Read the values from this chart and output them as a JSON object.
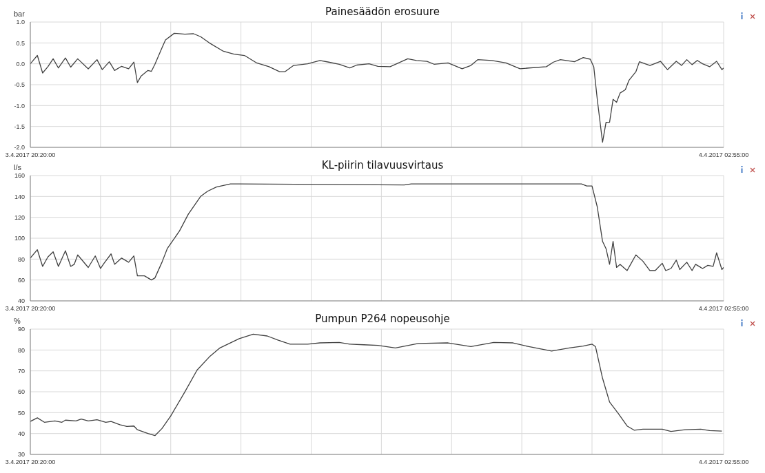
{
  "chart_data": [
    {
      "type": "line",
      "title": "Painesäädön erosuure",
      "ylabel": "bar",
      "grid": true,
      "xlim": [
        "2017-04-03T20:20",
        "2017-04-04T02:55"
      ],
      "xticks": [
        {
          "value": "2017-04-03T20:20",
          "label": "3.4.2017 20:20:00"
        },
        {
          "value": "2017-04-03T21:00",
          "label": null
        },
        {
          "value": "2017-04-03T21:40",
          "label": null
        },
        {
          "value": "2017-04-03T22:20",
          "label": null
        },
        {
          "value": "2017-04-03T23:00",
          "label": null
        },
        {
          "value": "2017-04-03T23:40",
          "label": null
        },
        {
          "value": "2017-04-04T00:20",
          "label": null
        },
        {
          "value": "2017-04-04T01:00",
          "label": null
        },
        {
          "value": "2017-04-04T01:40",
          "label": null
        },
        {
          "value": "2017-04-04T02:20",
          "label": null
        },
        {
          "value": "2017-04-04T02:55",
          "label": "4.4.2017 02:55:00"
        }
      ],
      "ylim": [
        -2,
        1
      ],
      "yticks": [
        {
          "value": -2,
          "label": "-2.0"
        },
        {
          "value": -1.5,
          "label": "-1.5"
        },
        {
          "value": -1,
          "label": "-1.0"
        },
        {
          "value": -0.5,
          "label": "-0.5"
        },
        {
          "value": 0,
          "label": "0.0"
        },
        {
          "value": 0.5,
          "label": "0.5"
        },
        {
          "value": 1,
          "label": "1.0"
        }
      ],
      "x": [
        "2017-04-03T20:20",
        "2017-04-03T20:24",
        "2017-04-03T20:27",
        "2017-04-03T20:30",
        "2017-04-03T20:33",
        "2017-04-03T20:36",
        "2017-04-03T20:40",
        "2017-04-03T20:43",
        "2017-04-03T20:47",
        "2017-04-03T20:53",
        "2017-04-03T20:58",
        "2017-04-03T21:01",
        "2017-04-03T21:05",
        "2017-04-03T21:08",
        "2017-04-03T21:12",
        "2017-04-03T21:16",
        "2017-04-03T21:19",
        "2017-04-03T21:21",
        "2017-04-03T21:23",
        "2017-04-03T21:27",
        "2017-04-03T21:29",
        "2017-04-03T21:31",
        "2017-04-03T21:35",
        "2017-04-03T21:37",
        "2017-04-03T21:42",
        "2017-04-03T21:48",
        "2017-04-03T21:53",
        "2017-04-03T21:57",
        "2017-04-03T22:02",
        "2017-04-03T22:10",
        "2017-04-03T22:16",
        "2017-04-03T22:22",
        "2017-04-03T22:29",
        "2017-04-03T22:36",
        "2017-04-03T22:42",
        "2017-04-03T22:45",
        "2017-04-03T22:50",
        "2017-04-03T22:58",
        "2017-04-03T23:05",
        "2017-04-03T23:10",
        "2017-04-03T23:16",
        "2017-04-03T23:22",
        "2017-04-03T23:26",
        "2017-04-03T23:33",
        "2017-04-03T23:38",
        "2017-04-03T23:45",
        "2017-04-03T23:55",
        "2017-04-04T00:00",
        "2017-04-04T00:06",
        "2017-04-04T00:10",
        "2017-04-04T00:18",
        "2017-04-04T00:26",
        "2017-04-04T00:31",
        "2017-04-04T00:35",
        "2017-04-04T00:43",
        "2017-04-04T00:51",
        "2017-04-04T00:59",
        "2017-04-04T01:04",
        "2017-04-04T01:14",
        "2017-04-04T01:18",
        "2017-04-04T01:22",
        "2017-04-04T01:30",
        "2017-04-04T01:35",
        "2017-04-04T01:39",
        "2017-04-04T01:41",
        "2017-04-04T01:43",
        "2017-04-04T01:46",
        "2017-04-04T01:48",
        "2017-04-04T01:50",
        "2017-04-04T01:52",
        "2017-04-04T01:54",
        "2017-04-04T01:56",
        "2017-04-04T01:59",
        "2017-04-04T02:01",
        "2017-04-04T02:05",
        "2017-04-04T02:07",
        "2017-04-04T02:13",
        "2017-04-04T02:19",
        "2017-04-04T02:23",
        "2017-04-04T02:28",
        "2017-04-04T02:31",
        "2017-04-04T02:34",
        "2017-04-04T02:37",
        "2017-04-04T02:40",
        "2017-04-04T02:43",
        "2017-04-04T02:47",
        "2017-04-04T02:51",
        "2017-04-04T02:54",
        "2017-04-04T02:55"
      ],
      "series": [
        {
          "color": "#404040",
          "values": [
            0.0,
            0.2,
            -0.22,
            -0.07,
            0.12,
            -0.1,
            0.14,
            -0.08,
            0.12,
            -0.12,
            0.1,
            -0.14,
            0.05,
            -0.16,
            -0.06,
            -0.12,
            0.04,
            -0.45,
            -0.3,
            -0.16,
            -0.18,
            -0.01,
            0.38,
            0.57,
            0.73,
            0.71,
            0.72,
            0.65,
            0.5,
            0.3,
            0.23,
            0.2,
            0.02,
            -0.07,
            -0.19,
            -0.19,
            -0.04,
            0.0,
            0.08,
            0.04,
            -0.01,
            -0.1,
            -0.03,
            0.0,
            -0.06,
            -0.07,
            0.12,
            0.08,
            0.06,
            -0.01,
            0.02,
            -0.12,
            -0.04,
            0.1,
            0.08,
            0.02,
            -0.12,
            -0.1,
            -0.07,
            0.04,
            0.1,
            0.05,
            0.15,
            0.11,
            -0.07,
            -0.85,
            -1.88,
            -1.4,
            -1.4,
            -0.85,
            -0.92,
            -0.7,
            -0.62,
            -0.4,
            -0.19,
            0.05,
            -0.04,
            0.06,
            -0.14,
            0.06,
            -0.04,
            0.1,
            -0.02,
            0.08,
            0.0,
            -0.07,
            0.06,
            -0.14,
            -0.1
          ]
        }
      ]
    },
    {
      "type": "line",
      "title": "KL-piirin tilavuusvirtaus",
      "ylabel": "l/s",
      "grid": true,
      "xlim": [
        "2017-04-03T20:20",
        "2017-04-04T02:55"
      ],
      "xticks": [
        {
          "value": "2017-04-03T20:20",
          "label": "3.4.2017 20:20:00"
        },
        {
          "value": "2017-04-03T21:00",
          "label": null
        },
        {
          "value": "2017-04-03T21:40",
          "label": null
        },
        {
          "value": "2017-04-03T22:20",
          "label": null
        },
        {
          "value": "2017-04-03T23:00",
          "label": null
        },
        {
          "value": "2017-04-03T23:40",
          "label": null
        },
        {
          "value": "2017-04-04T00:20",
          "label": null
        },
        {
          "value": "2017-04-04T01:00",
          "label": null
        },
        {
          "value": "2017-04-04T01:40",
          "label": null
        },
        {
          "value": "2017-04-04T02:20",
          "label": null
        },
        {
          "value": "2017-04-04T02:55",
          "label": "4.4.2017 02:55:00"
        }
      ],
      "ylim": [
        40,
        160
      ],
      "yticks": [
        40,
        60,
        80,
        100,
        120,
        140,
        160
      ],
      "x": [
        "2017-04-03T20:20",
        "2017-04-03T20:24",
        "2017-04-03T20:27",
        "2017-04-03T20:30",
        "2017-04-03T20:33",
        "2017-04-03T20:36",
        "2017-04-03T20:40",
        "2017-04-03T20:43",
        "2017-04-03T20:45",
        "2017-04-03T20:47",
        "2017-04-03T20:53",
        "2017-04-03T20:57",
        "2017-04-03T21:00",
        "2017-04-03T21:02",
        "2017-04-03T21:06",
        "2017-04-03T21:08",
        "2017-04-03T21:12",
        "2017-04-03T21:16",
        "2017-04-03T21:19",
        "2017-04-03T21:21",
        "2017-04-03T21:25",
        "2017-04-03T21:29",
        "2017-04-03T21:31",
        "2017-04-03T21:35",
        "2017-04-03T21:38",
        "2017-04-03T21:45",
        "2017-04-03T21:50",
        "2017-04-03T21:57",
        "2017-04-03T22:01",
        "2017-04-03T22:06",
        "2017-04-03T22:14",
        "2017-04-03T22:19",
        "2017-04-03T23:53",
        "2017-04-03T23:57",
        "2017-04-04T01:34",
        "2017-04-04T01:37",
        "2017-04-04T01:40",
        "2017-04-04T01:43",
        "2017-04-04T01:46",
        "2017-04-04T01:48",
        "2017-04-04T01:50",
        "2017-04-04T01:52",
        "2017-04-04T01:54",
        "2017-04-04T01:56",
        "2017-04-04T02:00",
        "2017-04-04T02:02",
        "2017-04-04T02:05",
        "2017-04-04T02:09",
        "2017-04-04T02:13",
        "2017-04-04T02:16",
        "2017-04-04T02:20",
        "2017-04-04T02:22",
        "2017-04-04T02:25",
        "2017-04-04T02:28",
        "2017-04-04T02:30",
        "2017-04-04T02:34",
        "2017-04-04T02:37",
        "2017-04-04T02:39",
        "2017-04-04T02:43",
        "2017-04-04T02:46",
        "2017-04-04T02:49",
        "2017-04-04T02:51",
        "2017-04-04T02:54",
        "2017-04-04T02:55"
      ],
      "series": [
        {
          "color": "#404040",
          "values": [
            81,
            89,
            73,
            82,
            87,
            73,
            88,
            73,
            75,
            84,
            72,
            83,
            71,
            76,
            85,
            75,
            81,
            77,
            83,
            64,
            64,
            60,
            62,
            77,
            90,
            107,
            123,
            140,
            145,
            149,
            152,
            152,
            151,
            152,
            152,
            150,
            150,
            130,
            97,
            90,
            75,
            97,
            72,
            75,
            69,
            75,
            84,
            78,
            69,
            69,
            76,
            69,
            71,
            79,
            70,
            77,
            69,
            75,
            71,
            74,
            73,
            86,
            70,
            72
          ]
        }
      ]
    },
    {
      "type": "line",
      "title": "Pumpun P264 nopeusohje",
      "ylabel": "%",
      "grid": true,
      "xlim": [
        "2017-04-03T20:20",
        "2017-04-04T02:55"
      ],
      "xticks": [
        {
          "value": "2017-04-03T20:20",
          "label": "3.4.2017 20:20:00"
        },
        {
          "value": "2017-04-03T21:00",
          "label": null
        },
        {
          "value": "2017-04-03T21:40",
          "label": null
        },
        {
          "value": "2017-04-03T22:20",
          "label": null
        },
        {
          "value": "2017-04-03T23:00",
          "label": null
        },
        {
          "value": "2017-04-03T23:40",
          "label": null
        },
        {
          "value": "2017-04-04T00:20",
          "label": null
        },
        {
          "value": "2017-04-04T01:00",
          "label": null
        },
        {
          "value": "2017-04-04T01:40",
          "label": null
        },
        {
          "value": "2017-04-04T02:20",
          "label": null
        },
        {
          "value": "2017-04-04T02:55",
          "label": "4.4.2017 02:55:00"
        }
      ],
      "ylim": [
        30,
        90
      ],
      "yticks": [
        30,
        40,
        50,
        60,
        70,
        80,
        90
      ],
      "x": [
        "2017-04-03T20:20",
        "2017-04-03T20:24",
        "2017-04-03T20:28",
        "2017-04-03T20:34",
        "2017-04-03T20:38",
        "2017-04-03T20:40",
        "2017-04-03T20:46",
        "2017-04-03T20:49",
        "2017-04-03T20:53",
        "2017-04-03T20:58",
        "2017-04-03T21:03",
        "2017-04-03T21:06",
        "2017-04-03T21:11",
        "2017-04-03T21:15",
        "2017-04-03T21:19",
        "2017-04-03T21:21",
        "2017-04-03T21:27",
        "2017-04-03T21:31",
        "2017-04-03T21:35",
        "2017-04-03T21:40",
        "2017-04-03T21:48",
        "2017-04-03T21:55",
        "2017-04-03T22:02",
        "2017-04-03T22:08",
        "2017-04-03T22:19",
        "2017-04-03T22:27",
        "2017-04-03T22:35",
        "2017-04-03T22:41",
        "2017-04-03T22:48",
        "2017-04-03T22:58",
        "2017-04-03T23:05",
        "2017-04-03T23:16",
        "2017-04-03T23:22",
        "2017-04-03T23:30",
        "2017-04-03T23:38",
        "2017-04-03T23:48",
        "2017-04-04T00:01",
        "2017-04-04T00:18",
        "2017-04-04T00:31",
        "2017-04-04T00:44",
        "2017-04-04T00:55",
        "2017-04-04T01:04",
        "2017-04-04T01:17",
        "2017-04-04T01:27",
        "2017-04-04T01:35",
        "2017-04-04T01:40",
        "2017-04-04T01:42",
        "2017-04-04T01:46",
        "2017-04-04T01:50",
        "2017-04-04T01:55",
        "2017-04-04T02:00",
        "2017-04-04T02:04",
        "2017-04-04T02:09",
        "2017-04-04T02:20",
        "2017-04-04T02:25",
        "2017-04-04T02:33",
        "2017-04-04T02:42",
        "2017-04-04T02:47",
        "2017-04-04T02:54"
      ],
      "series": [
        {
          "color": "#404040",
          "values": [
            45.8,
            47.5,
            45.4,
            46,
            45.4,
            46.4,
            46,
            46.9,
            46,
            46.6,
            45.4,
            45.8,
            44.2,
            43.4,
            43.6,
            41.8,
            40,
            39,
            42.4,
            48.4,
            59.9,
            70.4,
            76.7,
            81,
            85.4,
            87.6,
            86.7,
            84.8,
            82.8,
            82.8,
            83.4,
            83.6,
            82.8,
            82.5,
            82.2,
            81,
            83.1,
            83.4,
            81.6,
            83.6,
            83.4,
            81.6,
            79.5,
            81,
            81.9,
            82.8,
            81.6,
            66.5,
            55.1,
            49.6,
            43.6,
            41.6,
            42.1,
            42.1,
            41,
            41.8,
            42.1,
            41.4,
            41.2
          ]
        }
      ]
    }
  ]
}
